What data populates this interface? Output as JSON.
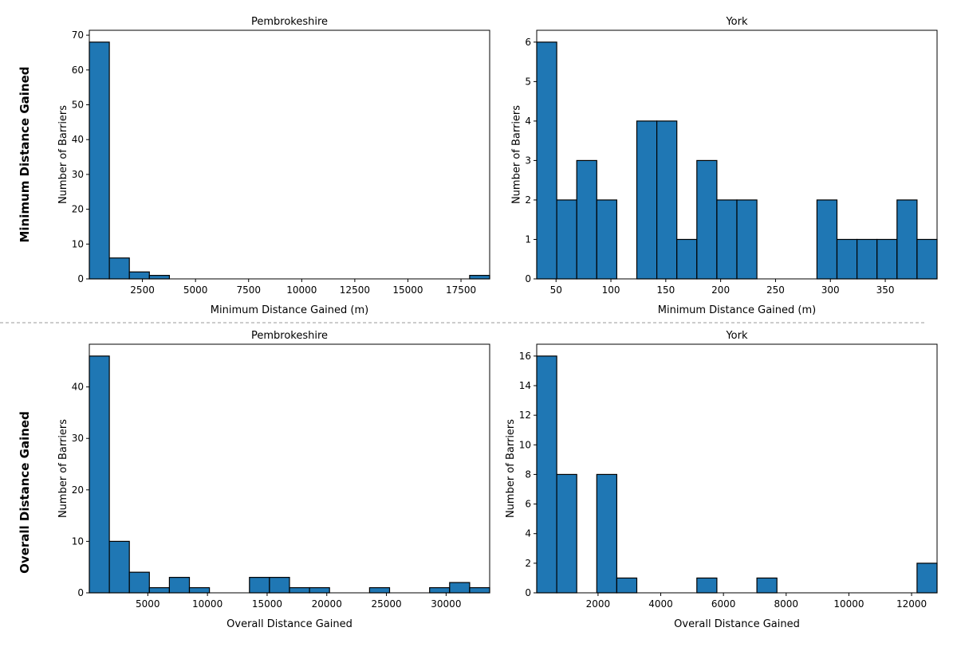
{
  "figure": {
    "row_labels": [
      "Minimum Distance Gained",
      "Overall Distance Gained"
    ],
    "separator": "dashed",
    "colors": {
      "bar_fill": "#1f77b4",
      "bar_edge": "#000000",
      "separator": "#999999",
      "frame": "#000000"
    }
  },
  "chart_data": [
    {
      "id": "pembrokeshire-min",
      "type": "bar",
      "subtype": "histogram",
      "row": 0,
      "col": 0,
      "title": "Pembrokeshire",
      "xlabel": "Minimum Distance Gained (m)",
      "ylabel": "Number of Barriers",
      "bins": 20,
      "xlim": [
        0,
        18850
      ],
      "ylim": [
        0,
        71.4
      ],
      "xticks": [
        2500,
        5000,
        7500,
        10000,
        12500,
        15000,
        17500
      ],
      "yticks": [
        0,
        10,
        20,
        30,
        40,
        50,
        60,
        70
      ],
      "values": [
        68,
        6,
        2,
        1,
        0,
        0,
        0,
        0,
        0,
        0,
        0,
        0,
        0,
        0,
        0,
        0,
        0,
        0,
        0,
        1
      ],
      "grid": false
    },
    {
      "id": "york-min",
      "type": "bar",
      "subtype": "histogram",
      "row": 0,
      "col": 1,
      "title": "York",
      "xlabel": "Minimum Distance Gained (m)",
      "ylabel": "Number of Barriers",
      "bins": 20,
      "xlim": [
        32.4,
        397.2
      ],
      "ylim": [
        0,
        6.3
      ],
      "xticks": [
        50,
        100,
        150,
        200,
        250,
        300,
        350
      ],
      "yticks": [
        0,
        1,
        2,
        3,
        4,
        5,
        6
      ],
      "values": [
        6,
        2,
        3,
        2,
        0,
        4,
        4,
        1,
        3,
        2,
        2,
        0,
        0,
        0,
        2,
        1,
        1,
        1,
        2,
        1
      ],
      "grid": false
    },
    {
      "id": "pembrokeshire-overall",
      "type": "bar",
      "subtype": "histogram",
      "row": 1,
      "col": 0,
      "title": "Pembrokeshire",
      "xlabel": "Overall Distance Gained",
      "ylabel": "Number of Barriers",
      "bins": 20,
      "xlim": [
        100,
        33650
      ],
      "ylim": [
        0,
        48.3
      ],
      "xticks": [
        5000,
        10000,
        15000,
        20000,
        25000,
        30000
      ],
      "yticks": [
        0,
        10,
        20,
        30,
        40
      ],
      "values": [
        46,
        10,
        4,
        1,
        3,
        1,
        0,
        0,
        3,
        3,
        1,
        1,
        0,
        0,
        1,
        0,
        0,
        1,
        2,
        1
      ],
      "grid": false
    },
    {
      "id": "york-overall",
      "type": "bar",
      "subtype": "histogram",
      "row": 1,
      "col": 1,
      "title": "York",
      "xlabel": "Overall Distance Gained",
      "ylabel": "Number of Barriers",
      "bins": 20,
      "xlim": [
        44,
        12813
      ],
      "ylim": [
        0,
        16.8
      ],
      "xticks": [
        2000,
        4000,
        6000,
        8000,
        10000,
        12000
      ],
      "yticks": [
        0,
        2,
        4,
        6,
        8,
        10,
        12,
        14,
        16
      ],
      "values": [
        16,
        8,
        0,
        8,
        1,
        0,
        0,
        0,
        1,
        0,
        0,
        1,
        0,
        0,
        0,
        0,
        0,
        0,
        0,
        2
      ],
      "grid": false
    }
  ]
}
